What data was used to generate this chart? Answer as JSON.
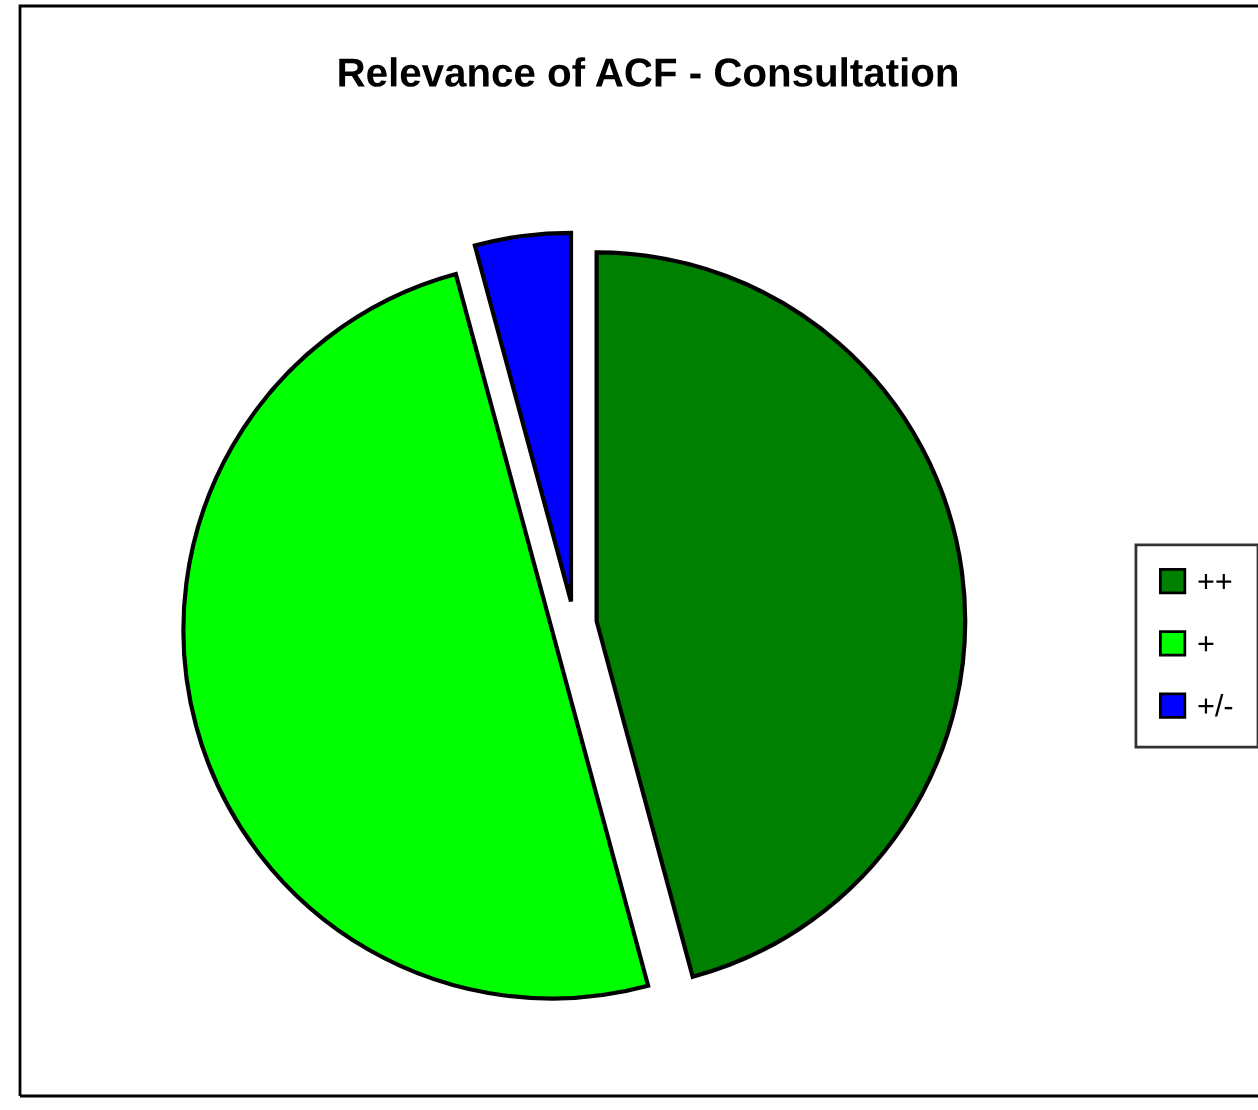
{
  "chart_data": {
    "type": "pie",
    "title": "Relevance of ACF - Consultation",
    "categories": [
      "++",
      "+",
      "+/-"
    ],
    "values": [
      45.8,
      50.0,
      4.2
    ],
    "colors": [
      "#008000",
      "#00ff00",
      "#0000ff"
    ],
    "legend": "right"
  }
}
